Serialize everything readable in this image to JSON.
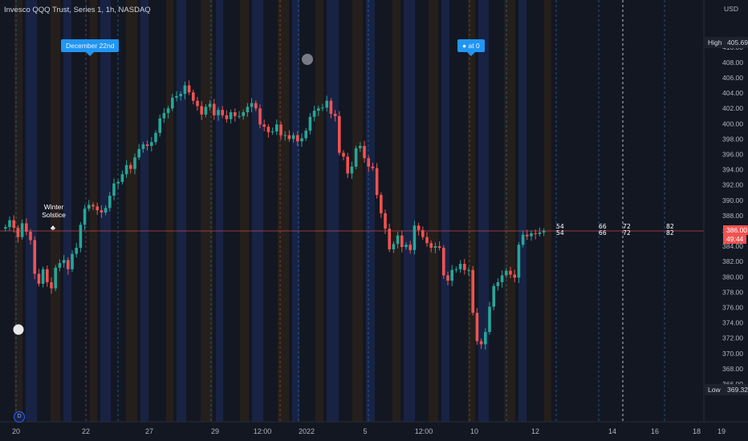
{
  "header": {
    "title": "Invesco QQQ Trust, Series 1, 1h, NASDAQ",
    "currency": "USD"
  },
  "price_scale": {
    "high_label": "High",
    "high_value": "405.69",
    "low_label": "Low",
    "low_value": "369.32",
    "last_price": "386.00",
    "countdown": "49:44"
  },
  "annotations": {
    "date_flag": "December 22nd",
    "event_flag": "at 0",
    "solstice_line1": "Winter",
    "solstice_line2": "Solstice",
    "badge": "D"
  },
  "future_counts": [
    {
      "top": "54",
      "bottom": "54"
    },
    {
      "top": "66",
      "bottom": "66"
    },
    {
      "top": "72",
      "bottom": "72"
    },
    {
      "top": "82",
      "bottom": "82"
    }
  ],
  "colors": {
    "background": "#131722",
    "up": "#26a69a",
    "down": "#ef5350",
    "band_blue": "#1b2a52",
    "band_orange": "#2e2418",
    "vline": "#2196f3",
    "price_line": "#f05350"
  },
  "chart_data": {
    "type": "candlestick",
    "title": "Invesco QQQ Trust, Series 1, 1h, NASDAQ",
    "ylabel": "USD",
    "ylim": [
      365,
      410
    ],
    "y_ticks": [
      366,
      368,
      370,
      372,
      374,
      376,
      378,
      380,
      382,
      384,
      386,
      388,
      390,
      392,
      394,
      396,
      398,
      400,
      402,
      404,
      406,
      408,
      410
    ],
    "x_tick_labels": [
      "20",
      "22",
      "27",
      "29",
      "12:00",
      "2022",
      "5",
      "12:00",
      "10",
      "12",
      "14",
      "16",
      "18",
      "19"
    ],
    "grid": false,
    "series": [
      {
        "name": "QQQ",
        "close": [
          386.5,
          387.4,
          386.4,
          385.2,
          387.0,
          385.9,
          384.8,
          380.4,
          379.1,
          381.0,
          379.3,
          378.5,
          381.2,
          381.8,
          382.2,
          381.0,
          383.0,
          383.8,
          386.8,
          388.9,
          389.4,
          389.2,
          388.7,
          388.4,
          389.0,
          390.6,
          392.2,
          392.4,
          393.4,
          394.6,
          394.1,
          395.6,
          396.7,
          397.3,
          397.1,
          397.6,
          398.8,
          400.7,
          401.4,
          402.0,
          403.4,
          403.6,
          403.9,
          405.0,
          404.1,
          403.0,
          402.3,
          401.2,
          402.2,
          402.6,
          401.1,
          401.8,
          401.1,
          400.6,
          401.5,
          401.0,
          401.0,
          401.5,
          402.2,
          402.7,
          402.0,
          399.9,
          399.6,
          398.9,
          399.0,
          399.9,
          398.5,
          398.5,
          398.0,
          398.5,
          397.7,
          398.1,
          399.1,
          400.9,
          401.7,
          402.0,
          402.1,
          403.0,
          401.3,
          401.0,
          396.2,
          395.7,
          393.5,
          394.4,
          396.8,
          397.1,
          395.5,
          394.4,
          394.2,
          390.7,
          388.3,
          386.3,
          383.6,
          384.3,
          385.4,
          383.9,
          384.2,
          383.5,
          386.7,
          386.1,
          385.2,
          384.4,
          383.8,
          384.0,
          383.8,
          380.2,
          379.5,
          380.9,
          381.0,
          381.7,
          380.9,
          380.9,
          375.3,
          371.6,
          371.2,
          372.8,
          376.1,
          378.8,
          379.3,
          380.2,
          380.8,
          380.3,
          379.9,
          384.2,
          385.5,
          385.3,
          385.7,
          385.6,
          385.8,
          386.0
        ]
      }
    ]
  }
}
